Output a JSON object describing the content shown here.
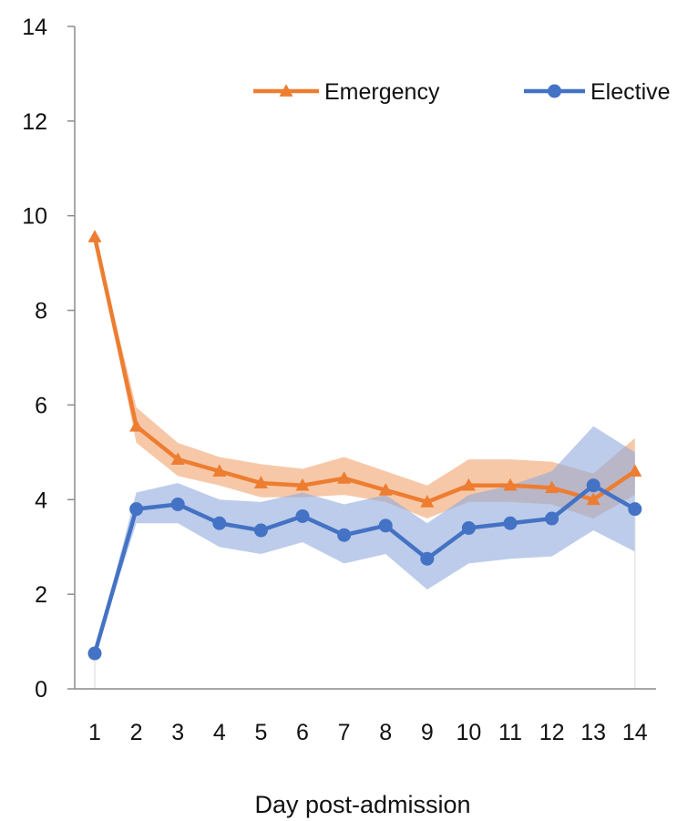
{
  "chart_data": {
    "type": "line",
    "title": "",
    "xlabel": "Day post-admission",
    "ylabel": "",
    "categories": [
      "1",
      "2",
      "3",
      "4",
      "5",
      "6",
      "7",
      "8",
      "9",
      "10",
      "11",
      "12",
      "13",
      "14"
    ],
    "ylim": [
      0,
      14
    ],
    "yticks": [
      0,
      2,
      4,
      6,
      8,
      10,
      12,
      14
    ],
    "grid": false,
    "legend_position": "top-right",
    "series": [
      {
        "name": "Emergency",
        "marker": "triangle",
        "color": "#ED7D31",
        "band_color": "#F4B183",
        "values": [
          9.55,
          5.55,
          4.85,
          4.6,
          4.35,
          4.3,
          4.45,
          4.2,
          3.95,
          4.3,
          4.3,
          4.25,
          4.0,
          4.6
        ],
        "band_lower": [
          9.55,
          5.2,
          4.5,
          4.3,
          4.05,
          4.05,
          4.1,
          3.95,
          3.6,
          3.95,
          3.95,
          3.9,
          3.6,
          4.1
        ],
        "band_upper": [
          9.55,
          5.95,
          5.2,
          4.9,
          4.75,
          4.65,
          4.9,
          4.6,
          4.3,
          4.85,
          4.85,
          4.8,
          4.55,
          5.3
        ]
      },
      {
        "name": "Elective",
        "marker": "circle",
        "color": "#4472C4",
        "band_color": "#8FAADC",
        "values": [
          0.75,
          3.8,
          3.9,
          3.5,
          3.35,
          3.65,
          3.25,
          3.45,
          2.75,
          3.4,
          3.5,
          3.6,
          4.3,
          3.8
        ],
        "band_lower": [
          0.75,
          3.5,
          3.5,
          3.0,
          2.85,
          3.1,
          2.65,
          2.85,
          2.1,
          2.65,
          2.75,
          2.8,
          3.35,
          2.9
        ],
        "band_upper": [
          0.75,
          4.15,
          4.35,
          4.0,
          3.95,
          4.15,
          3.9,
          4.1,
          3.5,
          4.1,
          4.3,
          4.6,
          5.55,
          5.0
        ]
      }
    ]
  }
}
